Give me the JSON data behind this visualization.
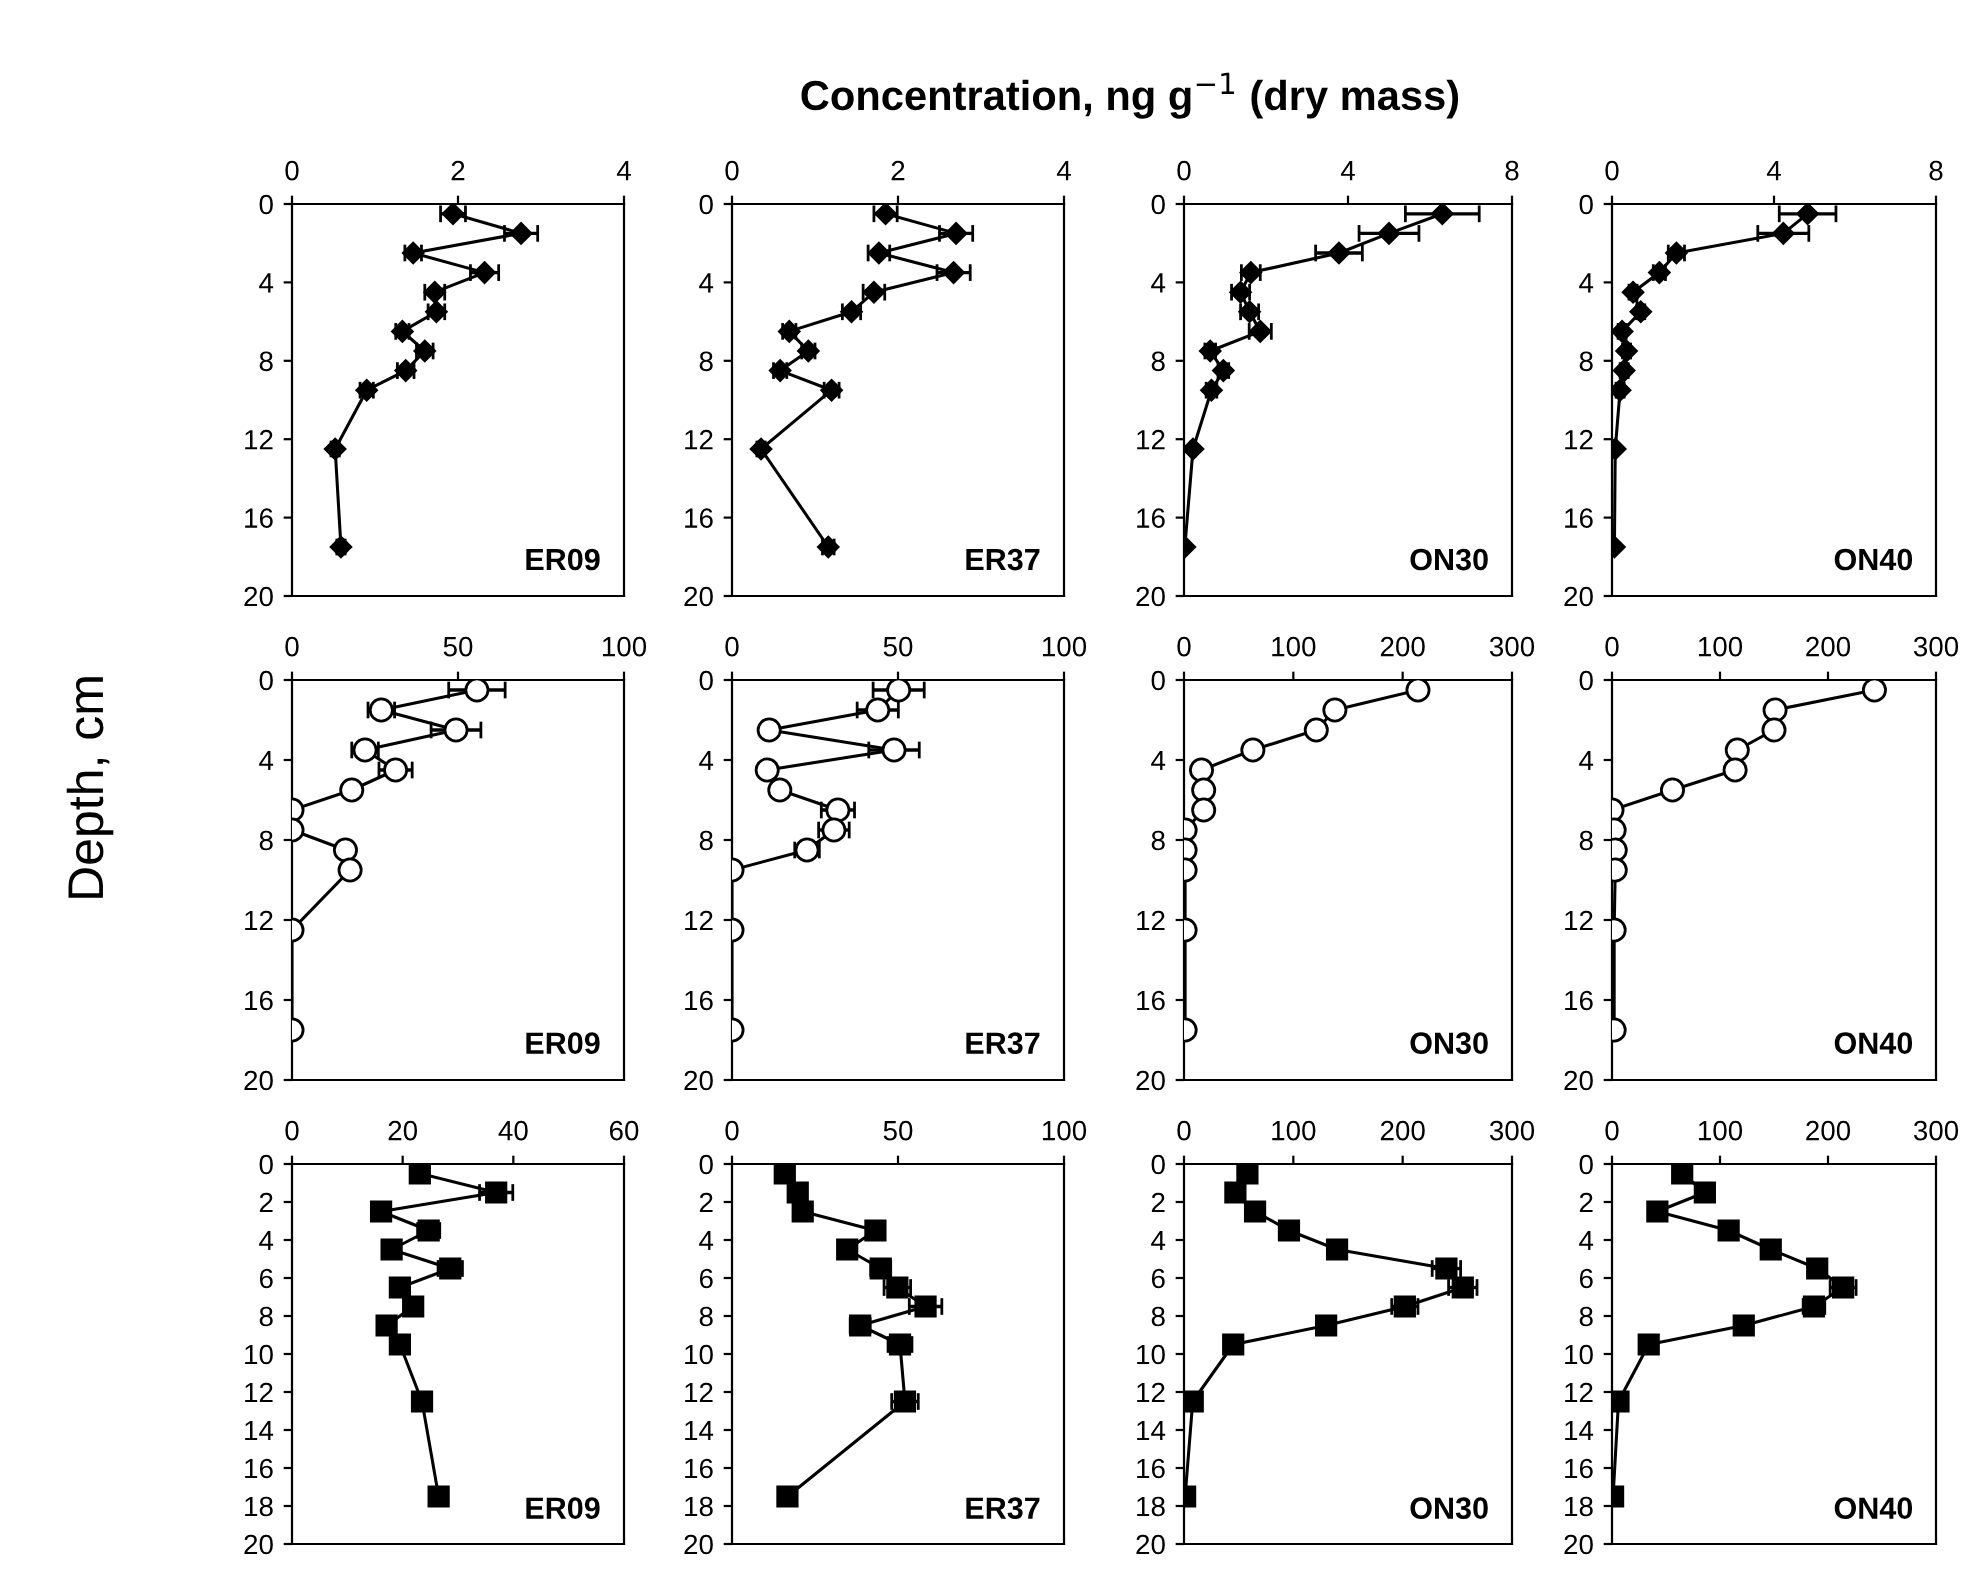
{
  "chart_data": [
    {
      "type": "line",
      "marker": "diamond",
      "xlim": [
        0,
        4
      ],
      "xticks": [
        0,
        2,
        4
      ],
      "ylim": [
        20,
        0
      ],
      "yticks": [
        0,
        4,
        8,
        12,
        16,
        20
      ],
      "annotations": [
        "ER09"
      ],
      "series": [
        {
          "color": "#000000",
          "x": [
            1.94,
            2.76,
            1.46,
            2.32,
            1.72,
            1.74,
            1.33,
            1.6,
            1.37,
            0.9,
            0.52,
            0.59
          ],
          "values": [
            0.5,
            1.5,
            2.5,
            3.5,
            4.5,
            5.5,
            6.5,
            7.5,
            8.5,
            9.5,
            12.5,
            17.5
          ],
          "xerrors": [
            0.15,
            0.2,
            0.1,
            0.17,
            0.12,
            0.1,
            0.08,
            0.1,
            0.1,
            0.08,
            0.05,
            0.05
          ]
        }
      ]
    },
    {
      "type": "line",
      "title": "Concentration, ng g$^{−1}$ (dry mass)",
      "marker": "diamond",
      "xlim": [
        0,
        4
      ],
      "xticks": [
        0,
        2,
        4
      ],
      "ylim": [
        20,
        0
      ],
      "yticks": [
        0,
        4,
        8,
        12,
        16,
        20
      ],
      "annotations": [
        "ER37"
      ],
      "series": [
        {
          "color": "#000000",
          "x": [
            1.85,
            2.7,
            1.77,
            2.67,
            1.71,
            1.44,
            0.69,
            0.92,
            0.58,
            1.2,
            0.35,
            1.16
          ],
          "values": [
            0.5,
            1.5,
            2.5,
            3.5,
            4.5,
            5.5,
            6.5,
            7.5,
            8.5,
            9.5,
            12.5,
            17.5
          ],
          "xerrors": [
            0.14,
            0.2,
            0.13,
            0.2,
            0.13,
            0.11,
            0.08,
            0.08,
            0.08,
            0.09,
            0.05,
            0.07
          ]
        }
      ]
    },
    {
      "type": "line",
      "marker": "diamond",
      "xlim": [
        0,
        8
      ],
      "xticks": [
        0,
        4,
        8
      ],
      "ylim": [
        20,
        0
      ],
      "yticks": [
        0,
        4,
        8,
        12,
        16,
        20
      ],
      "annotations": [
        "ON30"
      ],
      "series": [
        {
          "color": "#000000",
          "x": [
            6.3,
            5.0,
            3.78,
            1.63,
            1.38,
            1.6,
            1.86,
            0.64,
            0.96,
            0.67,
            0.22,
            0.02
          ],
          "values": [
            0.5,
            1.5,
            2.5,
            3.5,
            4.5,
            5.5,
            6.5,
            7.5,
            8.5,
            9.5,
            12.5,
            17.5
          ],
          "xerrors": [
            0.9,
            0.73,
            0.57,
            0.23,
            0.22,
            0.22,
            0.27,
            0.13,
            0.13,
            0.13,
            0.05,
            null
          ]
        }
      ]
    },
    {
      "type": "line",
      "marker": "diamond",
      "xlim": [
        0,
        8
      ],
      "xticks": [
        0,
        4,
        8
      ],
      "ylim": [
        20,
        0
      ],
      "yticks": [
        0,
        4,
        8,
        12,
        16,
        20
      ],
      "annotations": [
        "ON40"
      ],
      "series": [
        {
          "color": "#000000",
          "x": [
            4.83,
            4.23,
            1.59,
            1.17,
            0.52,
            0.71,
            0.25,
            0.36,
            0.3,
            0.2,
            0.08,
            0.06
          ],
          "values": [
            0.5,
            1.5,
            2.5,
            3.5,
            4.5,
            5.5,
            6.5,
            7.5,
            8.5,
            9.5,
            12.5,
            17.5
          ],
          "xerrors": [
            0.7,
            0.63,
            0.2,
            0.15,
            0.1,
            0.1,
            0.1,
            0.1,
            0.1,
            0.1,
            null,
            null
          ]
        }
      ]
    },
    {
      "type": "line",
      "ylabel": "Depth, cm",
      "marker": "circle",
      "xlim": [
        0,
        100
      ],
      "xticks": [
        0,
        50,
        100
      ],
      "ylim": [
        20,
        0
      ],
      "yticks": [
        0,
        4,
        8,
        12,
        16,
        20
      ],
      "annotations": [
        "ER09"
      ],
      "series": [
        {
          "color": "#000000",
          "x": [
            55.7,
            26.9,
            49.4,
            22.0,
            31.2,
            18.0,
            0,
            0,
            16.1,
            17.5,
            0,
            0
          ],
          "values": [
            0.5,
            1.5,
            2.5,
            3.5,
            4.5,
            5.5,
            6.5,
            7.5,
            8.5,
            9.5,
            12.5,
            17.5
          ],
          "xerrors": [
            8.5,
            4,
            7.5,
            4,
            5,
            null,
            null,
            null,
            null,
            null,
            null,
            null
          ]
        }
      ]
    },
    {
      "type": "line",
      "marker": "circle",
      "xlim": [
        0,
        100
      ],
      "xticks": [
        0,
        50,
        100
      ],
      "ylim": [
        20,
        0
      ],
      "yticks": [
        0,
        4,
        8,
        12,
        16,
        20
      ],
      "annotations": [
        "ER37"
      ],
      "series": [
        {
          "color": "#000000",
          "x": [
            50.2,
            43.9,
            11.2,
            48.8,
            10.6,
            14.4,
            31.9,
            30.7,
            22.6,
            0,
            0,
            0
          ],
          "values": [
            0.5,
            1.5,
            2.5,
            3.5,
            4.5,
            5.5,
            6.5,
            7.5,
            8.5,
            9.5,
            12.5,
            17.5
          ],
          "xerrors": [
            7.7,
            6.2,
            null,
            7.6,
            null,
            null,
            5,
            4.6,
            3.7,
            null,
            null,
            null
          ]
        }
      ]
    },
    {
      "type": "line",
      "marker": "circle",
      "xlim": [
        0,
        300
      ],
      "xticks": [
        0,
        100,
        200,
        300
      ],
      "ylim": [
        20,
        0
      ],
      "yticks": [
        0,
        4,
        8,
        12,
        16,
        20
      ],
      "annotations": [
        "ON30"
      ],
      "series": [
        {
          "color": "#000000",
          "x": [
            214,
            138,
            121,
            63,
            16,
            18,
            18,
            1,
            1,
            1,
            1,
            1
          ],
          "values": [
            0.5,
            1.5,
            2.5,
            3.5,
            4.5,
            5.5,
            6.5,
            7.5,
            8.5,
            9.5,
            12.5,
            17.5
          ]
        }
      ]
    },
    {
      "type": "line",
      "marker": "circle",
      "xlim": [
        0,
        300
      ],
      "xticks": [
        0,
        100,
        200,
        300
      ],
      "ylim": [
        20,
        0
      ],
      "yticks": [
        0,
        4,
        8,
        12,
        16,
        20
      ],
      "annotations": [
        "ON40"
      ],
      "series": [
        {
          "color": "#000000",
          "x": [
            243,
            151,
            150,
            116,
            114,
            56,
            0,
            2,
            3,
            3,
            2,
            2
          ],
          "values": [
            0.5,
            1.5,
            2.5,
            3.5,
            4.5,
            5.5,
            6.5,
            7.5,
            8.5,
            9.5,
            12.5,
            17.5
          ]
        }
      ]
    },
    {
      "type": "line",
      "marker": "square",
      "xlim": [
        0,
        60
      ],
      "xticks": [
        0,
        20,
        40,
        60
      ],
      "ylim": [
        20,
        0
      ],
      "yticks": [
        0,
        2,
        4,
        6,
        8,
        10,
        12,
        14,
        16,
        18,
        20
      ],
      "annotations": [
        "ER09"
      ],
      "series": [
        {
          "color": "#000000",
          "x": [
            23.1,
            36.9,
            16.1,
            24.7,
            18.0,
            28.6,
            19.5,
            21.9,
            17.1,
            19.5,
            23.5,
            26.5
          ],
          "values": [
            0.5,
            1.5,
            2.5,
            3.5,
            4.5,
            5.5,
            6.5,
            7.5,
            8.5,
            9.5,
            12.5,
            17.5
          ],
          "xerrors": [
            1.5,
            3,
            1,
            2,
            1,
            2.2,
            1.5,
            1.5,
            1,
            1.5,
            1.5,
            1.5
          ]
        }
      ]
    },
    {
      "type": "line",
      "marker": "square",
      "xlim": [
        0,
        100
      ],
      "xticks": [
        0,
        50,
        100
      ],
      "ylim": [
        20,
        0
      ],
      "yticks": [
        0,
        2,
        4,
        6,
        8,
        10,
        12,
        14,
        16,
        18,
        20
      ],
      "annotations": [
        "ER37"
      ],
      "series": [
        {
          "color": "#000000",
          "x": [
            15.9,
            19.8,
            21.3,
            43.2,
            34.7,
            44.8,
            49.8,
            58.3,
            38.6,
            50.6,
            52.1,
            16.7
          ],
          "values": [
            0.5,
            1.5,
            2.5,
            3.5,
            4.5,
            5.5,
            6.5,
            7.5,
            8.5,
            9.5,
            12.5,
            17.5
          ],
          "xerrors": [
            1.5,
            1.5,
            1.5,
            2.5,
            2,
            3,
            4,
            4.9,
            3,
            3.6,
            4,
            1.5
          ]
        }
      ]
    },
    {
      "type": "line",
      "marker": "square",
      "xlim": [
        0,
        300
      ],
      "xticks": [
        0,
        100,
        200,
        300
      ],
      "ylim": [
        20,
        0
      ],
      "yticks": [
        0,
        2,
        4,
        6,
        8,
        10,
        12,
        14,
        16,
        18,
        20
      ],
      "annotations": [
        "ON30"
      ],
      "series": [
        {
          "color": "#000000",
          "x": [
            58,
            47,
            65,
            96,
            140,
            240,
            255,
            202,
            130,
            45,
            8,
            1
          ],
          "values": [
            0.5,
            1.5,
            2.5,
            3.5,
            4.5,
            5.5,
            6.5,
            7.5,
            8.5,
            9.5,
            12.5,
            17.5
          ],
          "xerrors": [
            4,
            4,
            4,
            4,
            4,
            13,
            13,
            12,
            5,
            4,
            null,
            null
          ]
        }
      ]
    },
    {
      "type": "line",
      "marker": "square",
      "xlim": [
        0,
        300
      ],
      "xticks": [
        0,
        100,
        200,
        300
      ],
      "ylim": [
        20,
        0
      ],
      "yticks": [
        0,
        2,
        4,
        6,
        8,
        10,
        12,
        14,
        16,
        18,
        20
      ],
      "annotations": [
        "ON40"
      ],
      "series": [
        {
          "color": "#000000",
          "x": [
            65,
            86,
            42,
            108,
            147,
            190,
            214,
            187,
            122,
            34,
            6,
            1
          ],
          "values": [
            0.5,
            1.5,
            2.5,
            3.5,
            4.5,
            5.5,
            6.5,
            7.5,
            8.5,
            9.5,
            12.5,
            17.5
          ],
          "xerrors": [
            4,
            4,
            4,
            4,
            4,
            8,
            12,
            10,
            4,
            4,
            null,
            null
          ]
        }
      ]
    }
  ]
}
